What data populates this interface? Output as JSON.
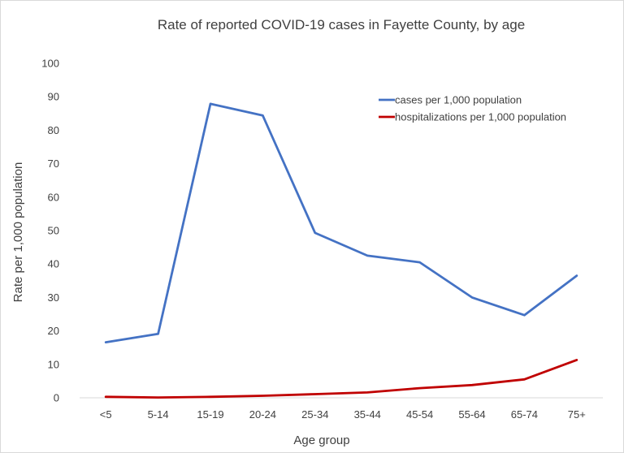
{
  "chart_data": {
    "type": "line",
    "title": "Rate of reported COVID-19 cases in Fayette County, by age",
    "xlabel": "Age group",
    "ylabel": "Rate per 1,000 population",
    "ylim": [
      0,
      100
    ],
    "yticks": [
      "0",
      "10",
      "20",
      "30",
      "40",
      "50",
      "60",
      "70",
      "80",
      "90",
      "100"
    ],
    "grid": false,
    "legend_position": "top-right",
    "categories": [
      "<5",
      "5-14",
      "15-19",
      "20-24",
      "25-34",
      "35-44",
      "45-54",
      "55-64",
      "65-74",
      "75+"
    ],
    "series": [
      {
        "name": "cases per 1,000 population",
        "color": "#4472C4",
        "values": [
          16.6,
          19.1,
          87.9,
          84.4,
          49.3,
          42.5,
          40.5,
          30.0,
          24.7,
          36.5
        ]
      },
      {
        "name": "hospitalizations per 1,000 population",
        "color": "#C00000",
        "values": [
          0.3,
          0.1,
          0.3,
          0.6,
          1.1,
          1.6,
          2.9,
          3.8,
          5.5,
          11.3
        ]
      }
    ]
  }
}
